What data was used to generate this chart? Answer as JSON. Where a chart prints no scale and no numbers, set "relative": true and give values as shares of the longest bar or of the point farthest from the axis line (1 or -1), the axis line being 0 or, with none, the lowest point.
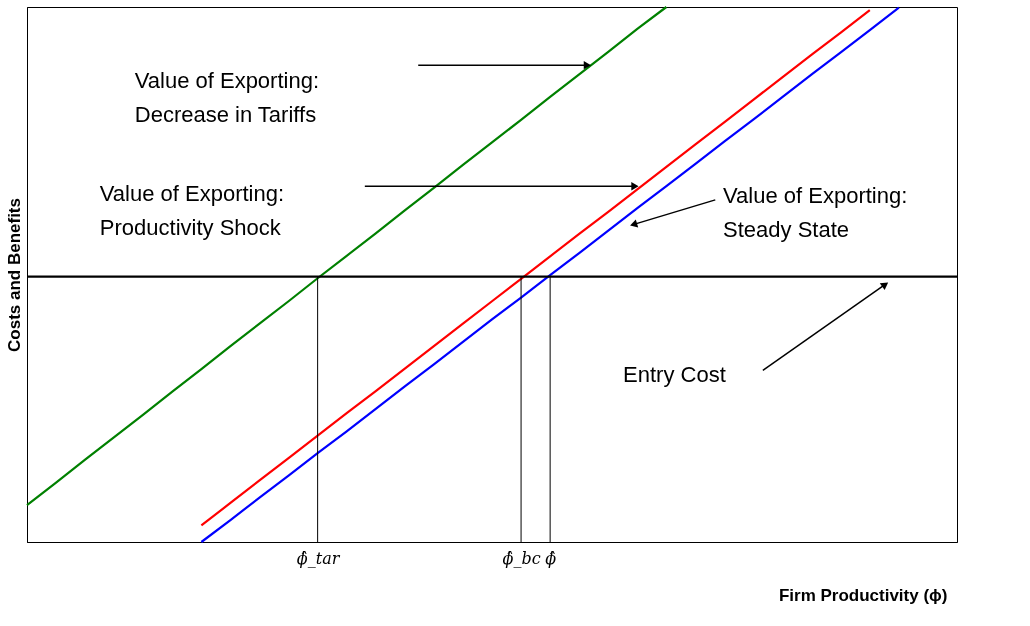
{
  "chart_data": {
    "type": "line",
    "relative": true,
    "ylabel": "Costs and Benefits",
    "xlabel": "Firm Productivity (ϕ)",
    "categories": [
      null,
      null,
      null,
      null,
      null,
      null,
      null,
      null,
      null,
      null,
      "ϕ̂_tar",
      null,
      null,
      null,
      null,
      null,
      null,
      "ϕ̂_bc",
      "ϕ̂",
      null,
      null,
      null,
      null,
      null,
      null,
      null,
      null,
      null,
      null,
      null,
      null,
      null,
      null
    ],
    "line_style": "solid",
    "series": [
      {
        "color": "#008000",
        "values": [
          0.069,
          0.111,
          0.154,
          0.196,
          0.238,
          0.281,
          0.323,
          0.366,
          0.408,
          0.45,
          0.493,
          0.535,
          0.577,
          0.62,
          0.662,
          0.705,
          0.747,
          0.789,
          0.832,
          0.874,
          0.916,
          0.959,
          1.0,
          null,
          null,
          null,
          null,
          null,
          null,
          null,
          null,
          null,
          null
        ]
      },
      {
        "color": "#ff0000",
        "values": [
          null,
          null,
          null,
          null,
          null,
          null,
          0.031,
          0.073,
          0.115,
          0.157,
          0.199,
          0.241,
          0.282,
          0.324,
          0.366,
          0.408,
          0.45,
          0.492,
          0.534,
          0.576,
          0.617,
          0.659,
          0.701,
          0.743,
          0.785,
          0.827,
          0.869,
          0.911,
          0.952,
          0.994,
          null,
          null,
          null
        ]
      },
      {
        "color": "#0000ff",
        "values": [
          null,
          null,
          null,
          null,
          null,
          null,
          0.0,
          0.041,
          0.083,
          0.124,
          0.166,
          0.207,
          0.249,
          0.291,
          0.332,
          0.374,
          0.416,
          0.457,
          0.499,
          0.54,
          0.582,
          0.624,
          0.665,
          0.707,
          0.749,
          0.79,
          0.832,
          0.874,
          0.915,
          0.957,
          0.999,
          null,
          null
        ]
      },
      {
        "color": "#000000",
        "values": [
          0.496,
          0.496,
          0.496,
          0.496,
          0.496,
          0.496,
          0.496,
          0.496,
          0.496,
          0.496,
          0.496,
          0.496,
          0.496,
          0.496,
          0.496,
          0.496,
          0.496,
          0.496,
          0.496,
          0.496,
          0.496,
          0.496,
          0.496,
          0.496,
          0.496,
          0.496,
          0.496,
          0.496,
          0.496,
          0.496,
          0.496,
          0.496,
          0.496
        ]
      }
    ],
    "ref_lines": [
      {
        "axis": "x",
        "value": "ϕ̂_tar",
        "color": "#000000"
      },
      {
        "axis": "x",
        "value": "ϕ̂_bc",
        "color": "#000000"
      },
      {
        "axis": "x",
        "value": "ϕ̂",
        "color": "#000000"
      }
    ],
    "annotations": [
      "Value of Exporting:\nDecrease in Tariffs",
      "Value of Exporting:\nProductivity Shock",
      "Value of Exporting:\nSteady State",
      "Entry Cost"
    ]
  }
}
